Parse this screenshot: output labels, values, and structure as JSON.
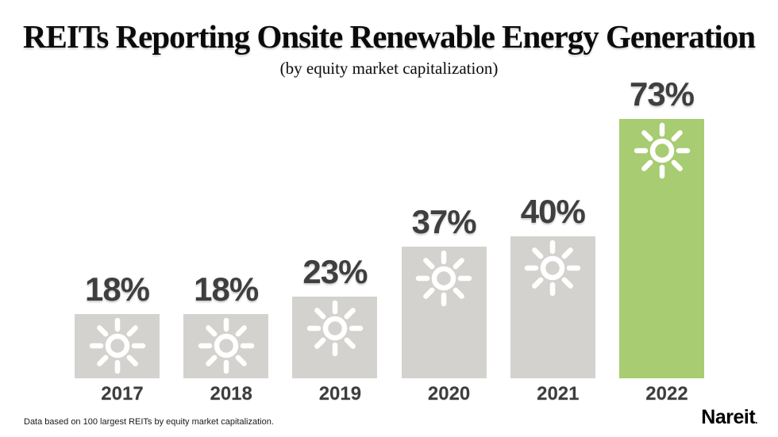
{
  "title": "REITs Reporting Onsite Renewable Energy Generation",
  "subtitle": "(by equity market capitalization)",
  "footnote": "Data based on 100 largest REITs by equity market capitalization.",
  "logo": {
    "text": "Nareit",
    "mark": "."
  },
  "colors": {
    "bar_default": "#d3d2cf",
    "bar_highlight": "#a7cc71",
    "icon": "#ffffff",
    "value_label": "#3f3f3f",
    "year_label": "#3d3d3d"
  },
  "chart_data": {
    "type": "bar",
    "title": "REITs Reporting Onsite Renewable Energy Generation",
    "subtitle": "(by equity market capitalization)",
    "categories": [
      "2017",
      "2018",
      "2019",
      "2020",
      "2021",
      "2022"
    ],
    "values": [
      18,
      18,
      23,
      37,
      40,
      73
    ],
    "value_labels": [
      "18%",
      "18%",
      "23%",
      "37%",
      "40%",
      "73%"
    ],
    "unit": "%",
    "highlight_category": "2022",
    "bar_icon": "sun-icon",
    "xlabel": "",
    "ylabel": "",
    "ylim": [
      0,
      80
    ],
    "grid": false,
    "legend": false,
    "annotation": "Data based on 100 largest REITs by equity market capitalization."
  }
}
